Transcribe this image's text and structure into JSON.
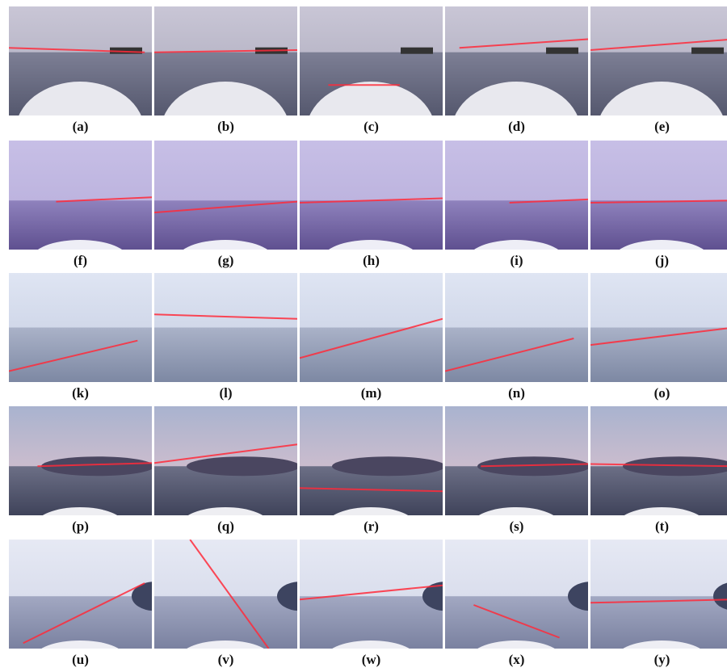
{
  "figure": {
    "labels": [
      "(a)",
      "(b)",
      "(c)",
      "(d)",
      "(e)",
      "(f)",
      "(g)",
      "(h)",
      "(i)",
      "(j)",
      "(k)",
      "(l)",
      "(m)",
      "(n)",
      "(o)",
      "(p)",
      "(q)",
      "(r)",
      "(s)",
      "(t)",
      "(u)",
      "(v)",
      "(w)",
      "(x)",
      "(y)"
    ]
  }
}
